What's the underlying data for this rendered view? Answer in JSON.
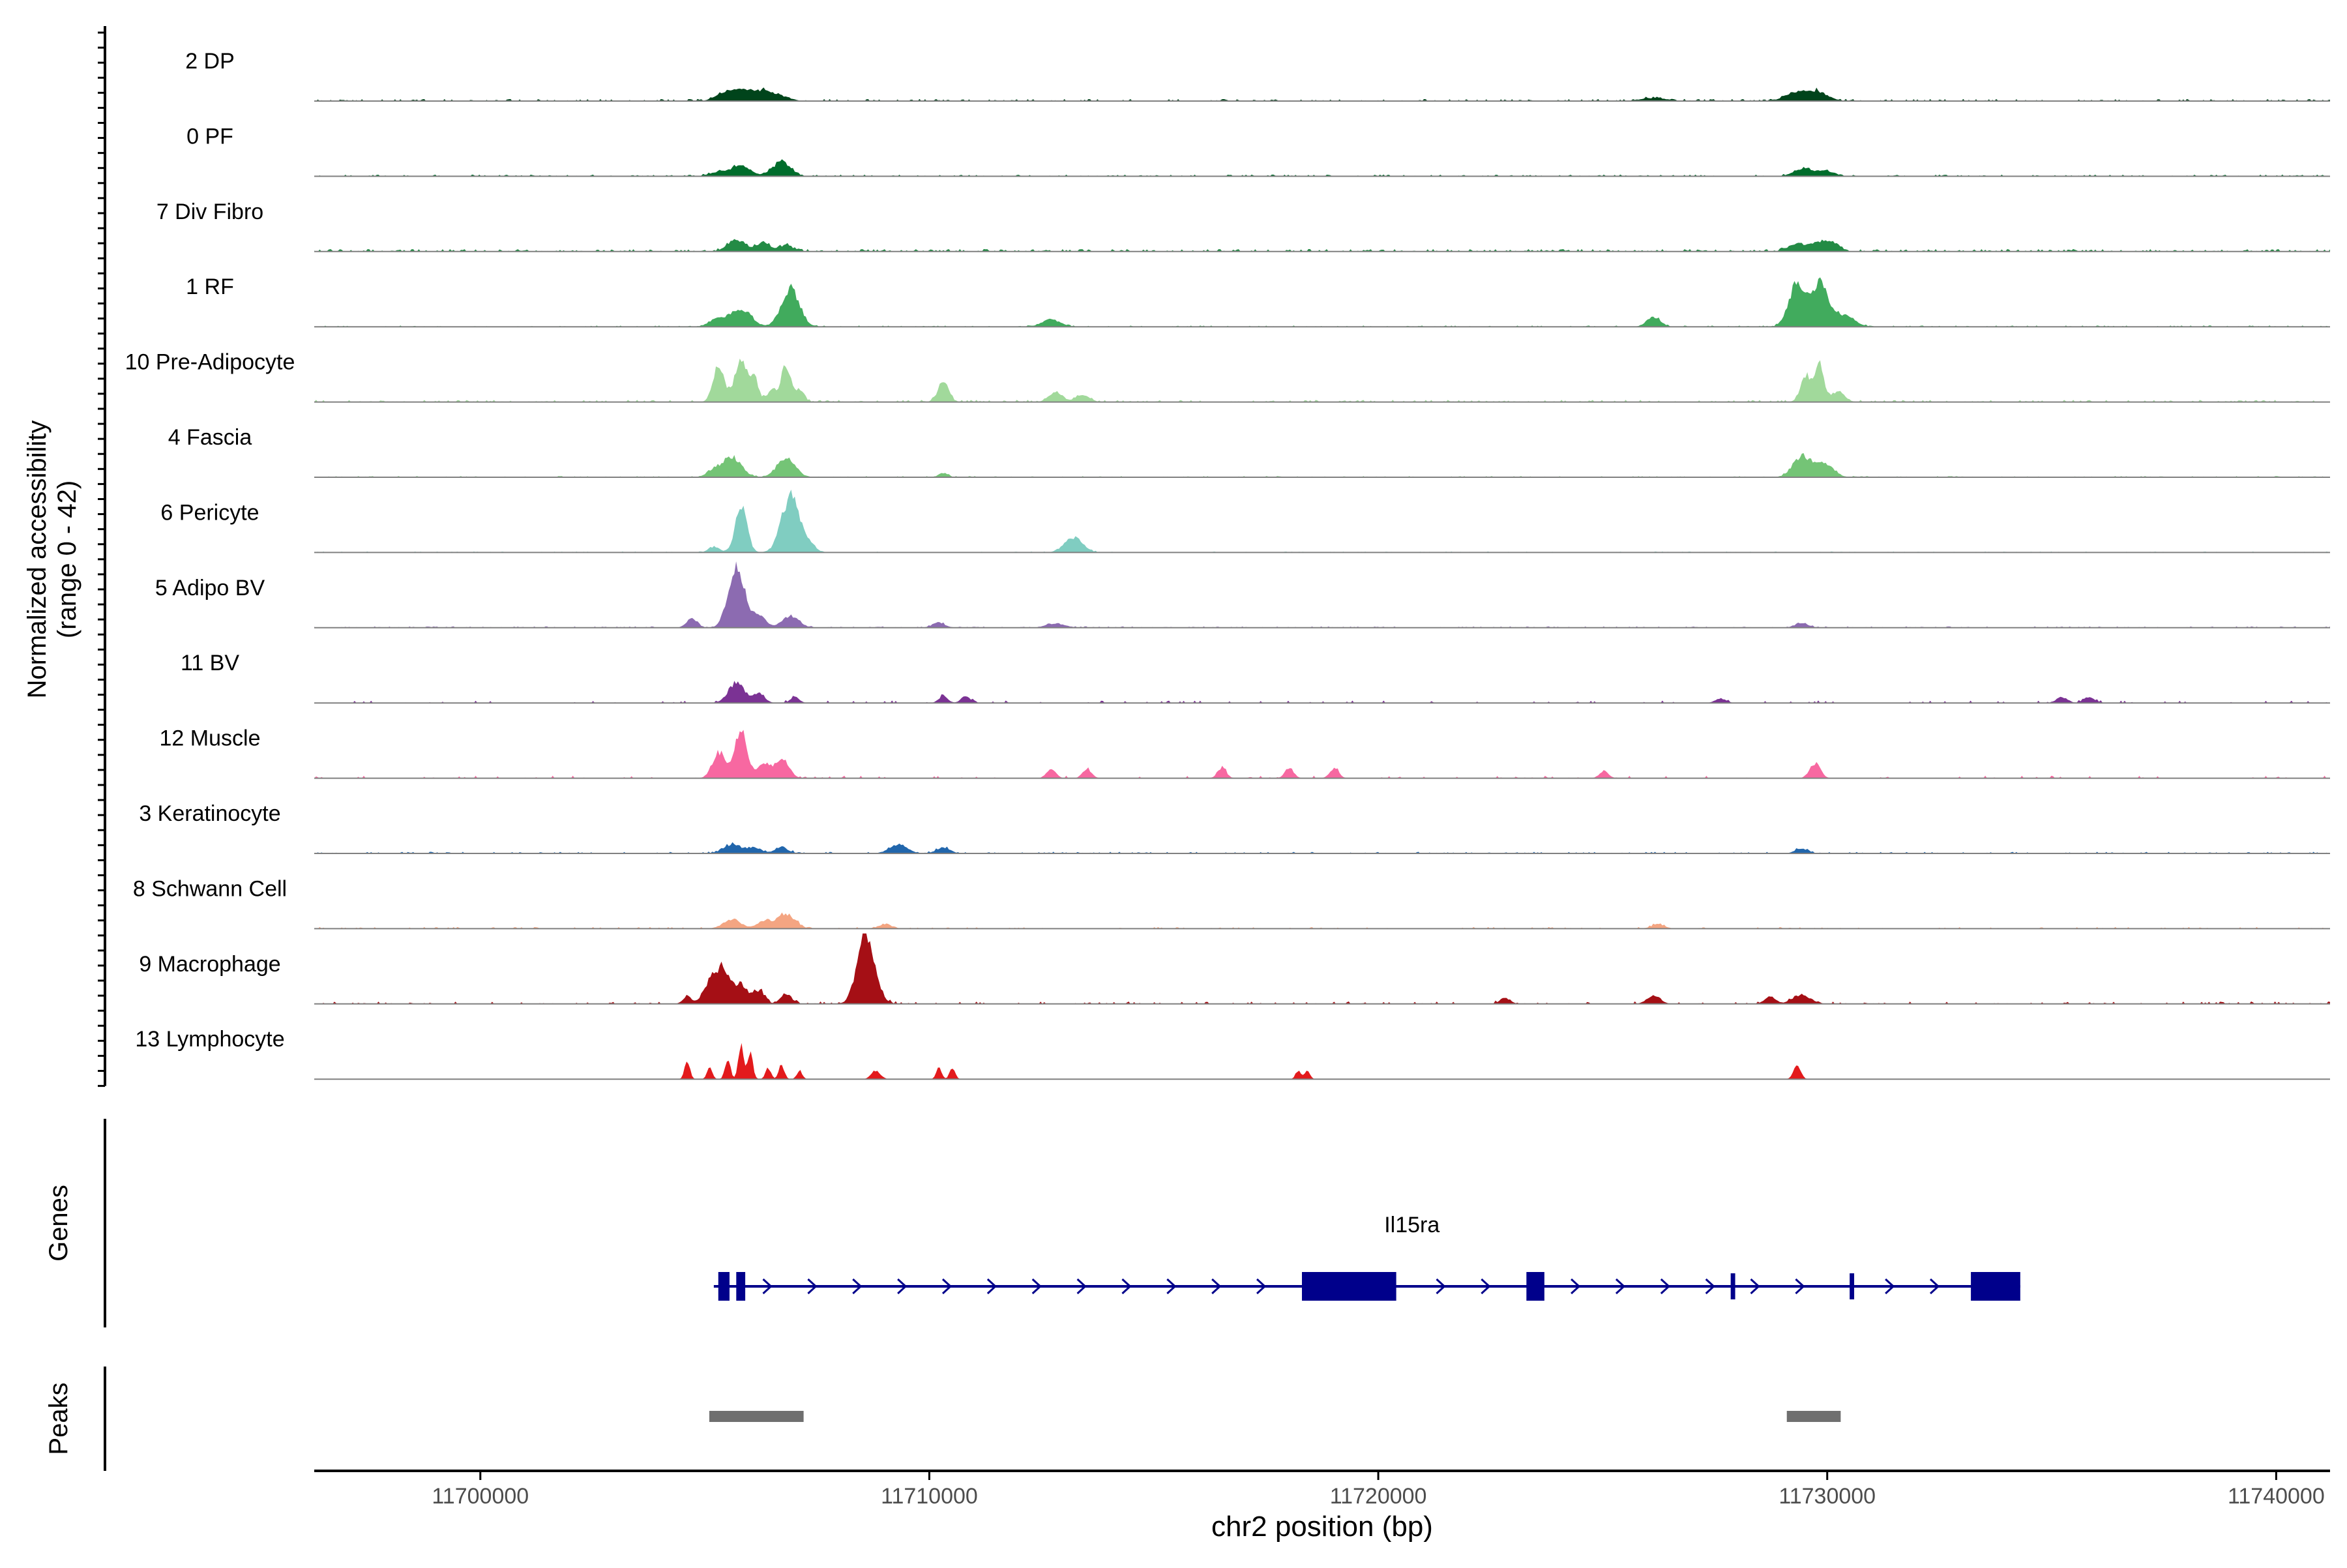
{
  "chart_data": {
    "type": "area",
    "title": "",
    "region": {
      "chromosome": "chr2",
      "start": 11696300,
      "end": 11741200
    },
    "ylabel_line1": "Normalized accessibility",
    "ylabel_line2": "(range 0 - 42)",
    "ylim": [
      0,
      42
    ],
    "xlabel": "chr2 position (bp)",
    "x_ticks": [
      {
        "value": 11700000,
        "label": "11700000"
      },
      {
        "value": 11710000,
        "label": "11710000"
      },
      {
        "value": 11720000,
        "label": "11720000"
      },
      {
        "value": 11730000,
        "label": "11730000"
      },
      {
        "value": 11740000,
        "label": "11740000"
      }
    ],
    "tracks": [
      {
        "name": "2 DP",
        "color": "#00441b",
        "noise": 1.2,
        "density": 0.35,
        "peaks": [
          [
            11705400,
            200,
            4
          ],
          [
            11705800,
            250,
            7
          ],
          [
            11706300,
            200,
            6
          ],
          [
            11706700,
            200,
            3
          ],
          [
            11726100,
            300,
            2
          ],
          [
            11729200,
            200,
            5
          ],
          [
            11729700,
            250,
            7
          ]
        ]
      },
      {
        "name": "0 PF",
        "color": "#006d2c",
        "noise": 1.0,
        "density": 0.35,
        "peaks": [
          [
            11705800,
            200,
            8
          ],
          [
            11706700,
            200,
            10
          ],
          [
            11705300,
            200,
            3
          ],
          [
            11729400,
            200,
            5
          ],
          [
            11729900,
            200,
            4
          ]
        ]
      },
      {
        "name": "7 Div Fibro",
        "color": "#238b45",
        "noise": 1.5,
        "density": 0.45,
        "peaks": [
          [
            11705700,
            200,
            8
          ],
          [
            11706300,
            150,
            6
          ],
          [
            11706800,
            150,
            4
          ],
          [
            11729300,
            200,
            5
          ],
          [
            11729800,
            200,
            6
          ],
          [
            11730100,
            150,
            5
          ]
        ]
      },
      {
        "name": "1 RF",
        "color": "#41ab5d",
        "noise": 0.8,
        "density": 0.3,
        "peaks": [
          [
            11705800,
            220,
            12
          ],
          [
            11706900,
            200,
            26
          ],
          [
            11705300,
            200,
            5
          ],
          [
            11712700,
            200,
            5
          ],
          [
            11726100,
            150,
            7
          ],
          [
            11729300,
            180,
            30
          ],
          [
            11729800,
            180,
            29
          ],
          [
            11730300,
            250,
            8
          ]
        ]
      },
      {
        "name": "10 Pre-Adipocyte",
        "color": "#a1d99b",
        "noise": 1.3,
        "density": 0.35,
        "peaks": [
          [
            11705300,
            120,
            26
          ],
          [
            11705800,
            140,
            28
          ],
          [
            11706100,
            100,
            14
          ],
          [
            11706500,
            100,
            9
          ],
          [
            11706800,
            100,
            26
          ],
          [
            11707100,
            100,
            8
          ],
          [
            11710300,
            120,
            14
          ],
          [
            11712800,
            150,
            7
          ],
          [
            11713400,
            150,
            5
          ],
          [
            11729500,
            120,
            18
          ],
          [
            11729800,
            100,
            24
          ],
          [
            11730200,
            150,
            7
          ]
        ]
      },
      {
        "name": "4 Fascia",
        "color": "#74c476",
        "noise": 0.7,
        "density": 0.35,
        "peaks": [
          [
            11705600,
            200,
            14
          ],
          [
            11706800,
            200,
            13
          ],
          [
            11705200,
            150,
            5
          ],
          [
            11729400,
            200,
            14
          ],
          [
            11729900,
            200,
            9
          ],
          [
            11710300,
            100,
            3
          ]
        ]
      },
      {
        "name": "6 Pericyte",
        "color": "#80cdc1",
        "noise": 0.6,
        "density": 0.3,
        "peaks": [
          [
            11705800,
            130,
            33
          ],
          [
            11706900,
            200,
            38
          ],
          [
            11713200,
            200,
            10
          ],
          [
            11707300,
            150,
            5
          ],
          [
            11705200,
            120,
            4
          ]
        ]
      },
      {
        "name": "5 Adipo BV",
        "color": "#8c6bb1",
        "noise": 0.8,
        "density": 0.4,
        "peaks": [
          [
            11705700,
            180,
            42
          ],
          [
            11706200,
            150,
            8
          ],
          [
            11706900,
            180,
            8
          ],
          [
            11704700,
            120,
            6
          ],
          [
            11710200,
            150,
            3
          ],
          [
            11712800,
            200,
            3
          ],
          [
            11729400,
            150,
            3
          ]
        ]
      },
      {
        "name": "11 BV",
        "color": "#7b3294",
        "noise": 1.5,
        "density": 0.12,
        "peaks": [
          [
            11705700,
            180,
            14
          ],
          [
            11706200,
            120,
            7
          ],
          [
            11707000,
            100,
            4
          ],
          [
            11710300,
            100,
            5
          ],
          [
            11710800,
            100,
            5
          ],
          [
            11735200,
            120,
            4
          ],
          [
            11735800,
            120,
            4
          ],
          [
            11727600,
            120,
            3
          ]
        ]
      },
      {
        "name": "12 Muscle",
        "color": "#f768a1",
        "noise": 1.5,
        "density": 0.12,
        "peaks": [
          [
            11705300,
            140,
            18
          ],
          [
            11705800,
            140,
            33
          ],
          [
            11706300,
            120,
            10
          ],
          [
            11706600,
            120,
            8
          ],
          [
            11706800,
            120,
            9
          ],
          [
            11712700,
            100,
            7
          ],
          [
            11713500,
            100,
            6
          ],
          [
            11716500,
            100,
            7
          ],
          [
            11718000,
            100,
            7
          ],
          [
            11719000,
            100,
            7
          ],
          [
            11725000,
            100,
            5
          ],
          [
            11729700,
            120,
            10
          ]
        ]
      },
      {
        "name": "3 Keratinocyte",
        "color": "#2166ac",
        "noise": 1.0,
        "density": 0.3,
        "peaks": [
          [
            11705600,
            200,
            6
          ],
          [
            11706100,
            150,
            4
          ],
          [
            11706700,
            150,
            4
          ],
          [
            11709300,
            200,
            6
          ],
          [
            11710300,
            150,
            4
          ],
          [
            11729400,
            150,
            3
          ]
        ]
      },
      {
        "name": "8 Schwann Cell",
        "color": "#f4a582",
        "noise": 1.0,
        "density": 0.2,
        "peaks": [
          [
            11705600,
            200,
            6
          ],
          [
            11706800,
            200,
            10
          ],
          [
            11706300,
            150,
            5
          ],
          [
            11726200,
            150,
            3
          ],
          [
            11709000,
            150,
            3
          ]
        ]
      },
      {
        "name": "9 Macrophage",
        "color": "#a50f15",
        "noise": 1.5,
        "density": 0.18,
        "peaks": [
          [
            11705100,
            150,
            14
          ],
          [
            11705400,
            150,
            24
          ],
          [
            11705800,
            150,
            13
          ],
          [
            11706200,
            120,
            9
          ],
          [
            11706800,
            120,
            7
          ],
          [
            11708600,
            200,
            35
          ],
          [
            11708500,
            150,
            14
          ],
          [
            11729400,
            200,
            6
          ],
          [
            11726100,
            150,
            5
          ],
          [
            11704600,
            100,
            5
          ],
          [
            11722800,
            120,
            4
          ],
          [
            11728700,
            120,
            5
          ]
        ]
      },
      {
        "name": "13 Lymphocyte",
        "color": "#e31a1c",
        "noise": 0.0,
        "density": 0.0,
        "peaks": [
          [
            11704600,
            60,
            12
          ],
          [
            11705100,
            60,
            8
          ],
          [
            11705500,
            60,
            14
          ],
          [
            11705800,
            60,
            22
          ],
          [
            11706000,
            60,
            18
          ],
          [
            11706400,
            60,
            8
          ],
          [
            11706700,
            60,
            10
          ],
          [
            11707100,
            60,
            6
          ],
          [
            11708800,
            100,
            6
          ],
          [
            11710200,
            60,
            8
          ],
          [
            11710500,
            60,
            8
          ],
          [
            11718200,
            60,
            6
          ],
          [
            11718400,
            60,
            6
          ],
          [
            11729300,
            80,
            10
          ]
        ]
      }
    ],
    "genes": {
      "label": "Genes",
      "name": "Il15ra",
      "start": 11705200,
      "end": 11734300,
      "strand": "+",
      "exons": [
        [
          11705300,
          11705550
        ],
        [
          11705700,
          11705900
        ],
        [
          11718300,
          11720400
        ],
        [
          11723300,
          11723700
        ],
        [
          11727850,
          11727950
        ],
        [
          11730500,
          11730600
        ],
        [
          11733200,
          11734300
        ]
      ]
    },
    "peaks_track": {
      "label": "Peaks",
      "color": "#6f6f6f",
      "regions": [
        [
          11705100,
          11707200
        ],
        [
          11729100,
          11730300
        ]
      ]
    }
  }
}
